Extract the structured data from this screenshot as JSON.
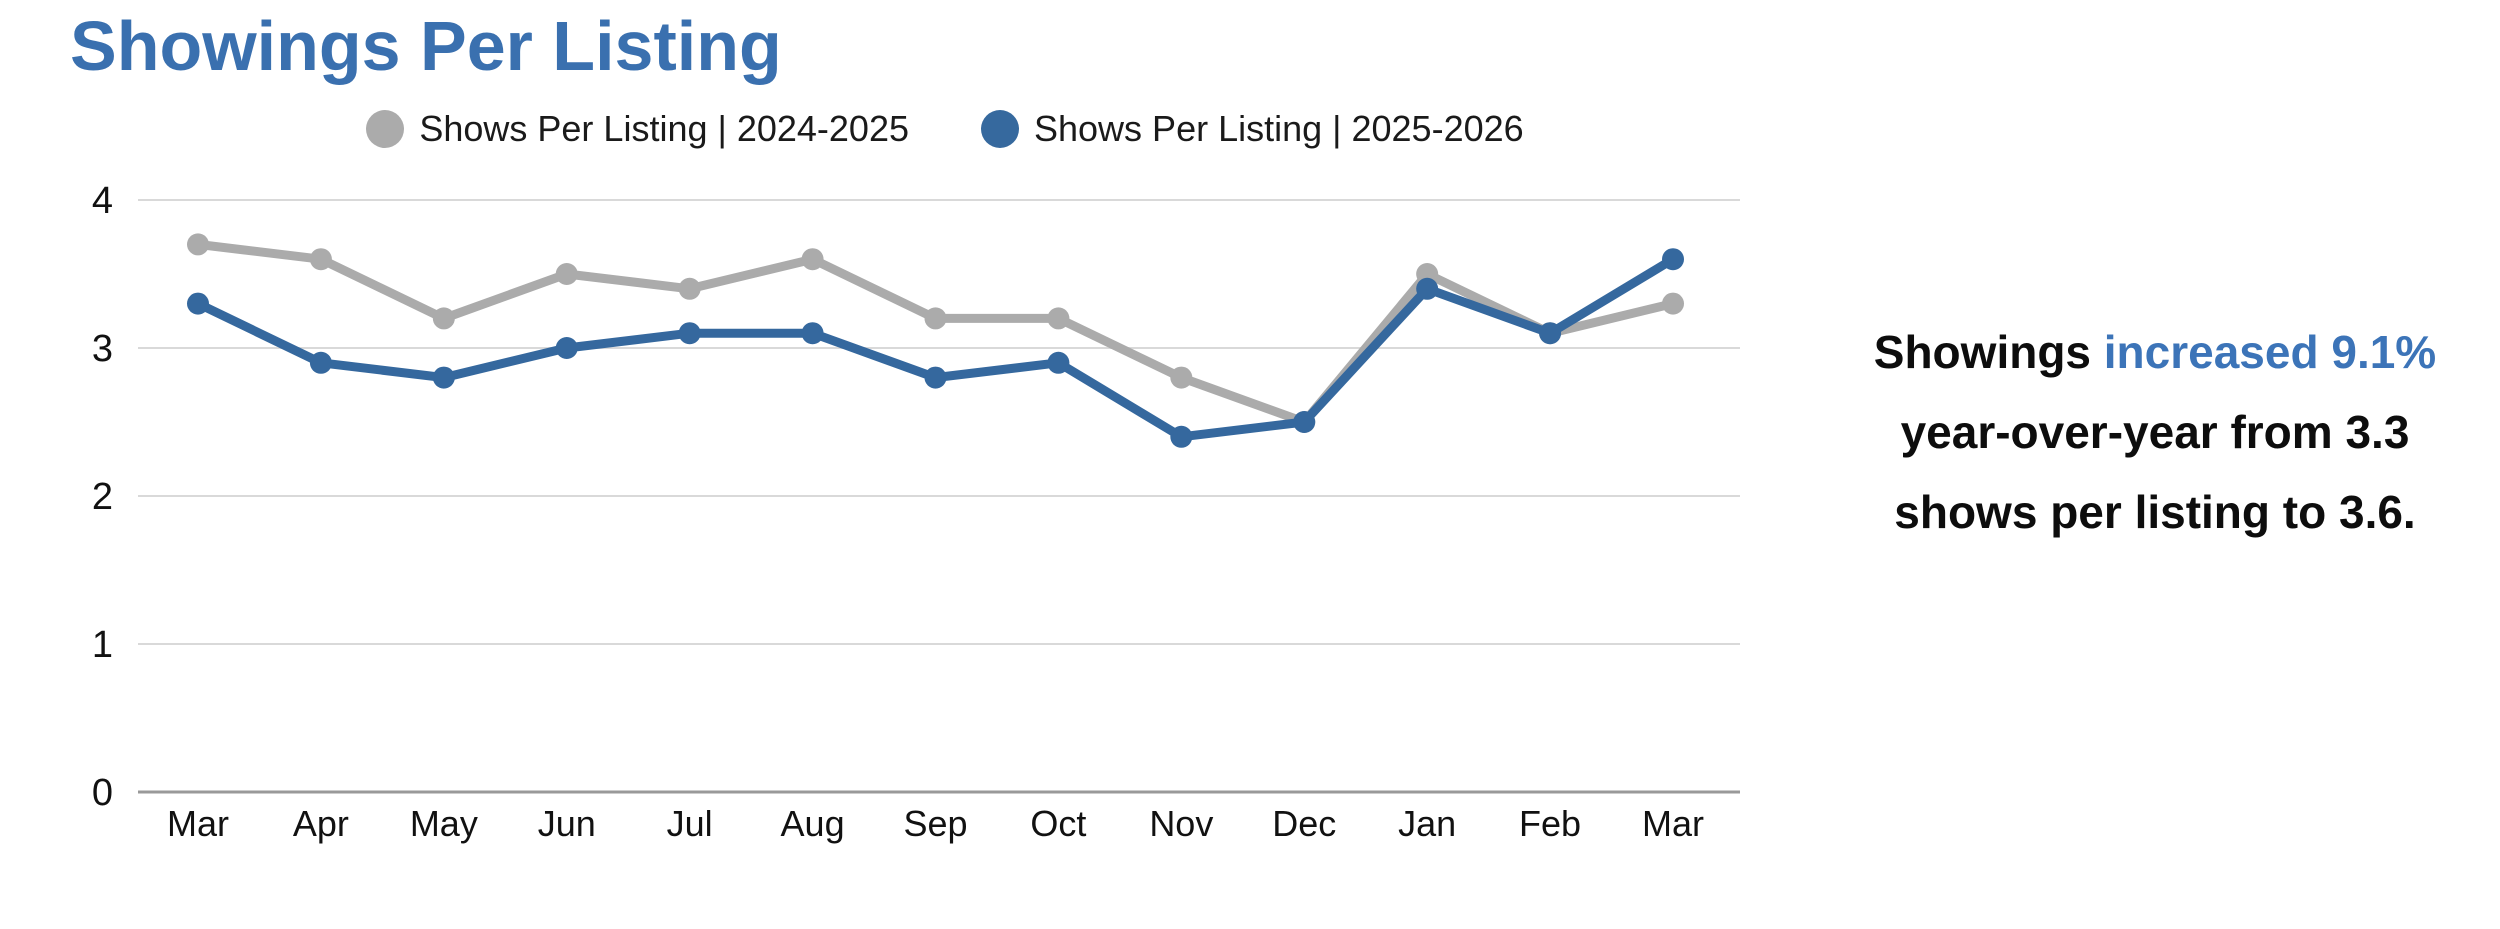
{
  "page": {
    "background": "#ffffff"
  },
  "header": {
    "title": "Showings Per Listing",
    "title_color": "#3A70AF"
  },
  "legend": {
    "items": [
      {
        "label": "Shows Per Listing | 2024-2025",
        "color": "#ABABAB"
      },
      {
        "label": "Shows Per Listing | 2025-2026",
        "color": "#36699E"
      }
    ]
  },
  "chart_data": {
    "type": "line",
    "title": "Showings Per Listing",
    "categories": [
      "Mar",
      "Apr",
      "May",
      "Jun",
      "Jul",
      "Aug",
      "Sep",
      "Oct",
      "Nov",
      "Dec",
      "Jan",
      "Feb",
      "Mar"
    ],
    "series": [
      {
        "name": "Shows Per Listing | 2024-2025",
        "color": "#ABABAB",
        "values": [
          3.7,
          3.6,
          3.2,
          3.5,
          3.4,
          3.6,
          3.2,
          3.2,
          2.8,
          2.5,
          3.5,
          3.1,
          3.3
        ]
      },
      {
        "name": "Shows Per Listing | 2025-2026",
        "color": "#35689E",
        "values": [
          3.3,
          2.9,
          2.8,
          3.0,
          3.1,
          3.1,
          2.8,
          2.9,
          2.4,
          2.5,
          3.4,
          3.1,
          3.6
        ]
      }
    ],
    "ylim": [
      0,
      4
    ],
    "yticks": [
      0,
      1,
      2,
      3,
      4
    ],
    "grid": true,
    "gridline_color": "#D9D9D9",
    "baseline_color": "#999999",
    "legend_position": "top"
  },
  "annotation": {
    "line1_black": "Showings ",
    "line1_blue": "increased 9.1%",
    "line2": "year-over-year from 3.3",
    "line3": "shows per listing to 3.6.",
    "blue_color": "#3C74B8"
  }
}
